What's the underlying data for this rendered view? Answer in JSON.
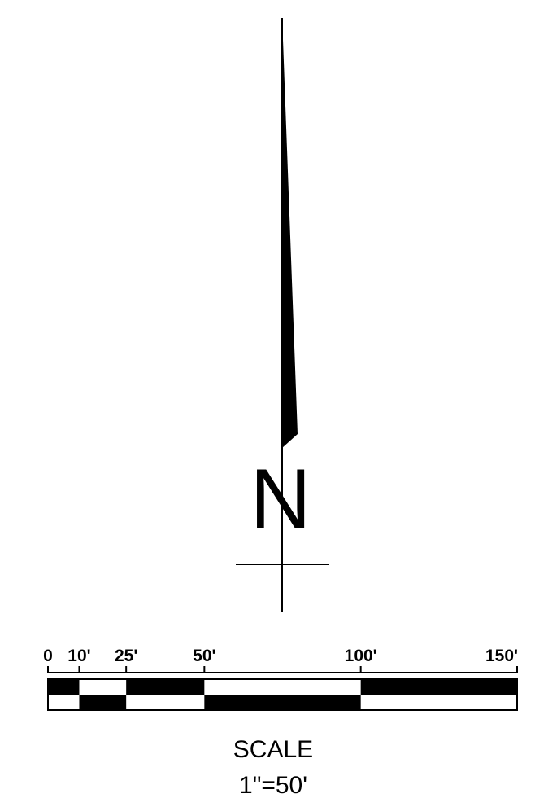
{
  "north_arrow": {
    "label": "N"
  },
  "scale_bar": {
    "ticks": [
      {
        "value": 0,
        "label": "0"
      },
      {
        "value": 10,
        "label": "10'"
      },
      {
        "value": 25,
        "label": "25'"
      },
      {
        "value": 50,
        "label": "50'"
      },
      {
        "value": 100,
        "label": "100'"
      },
      {
        "value": 150,
        "label": "150'"
      }
    ],
    "max_value": 150
  },
  "scale_text": {
    "title": "SCALE",
    "ratio": "1\"=50'"
  },
  "colors": {
    "ink": "#000000",
    "paper": "#ffffff"
  }
}
